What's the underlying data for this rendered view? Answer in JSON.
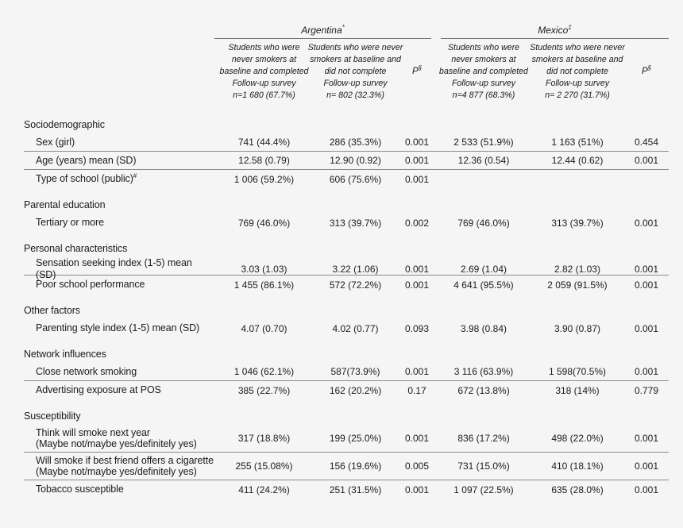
{
  "background": "#f5f5f6",
  "text_color": "#1b1b1b",
  "rule_color": "#8b8b8b",
  "table": {
    "col_groups": [
      {
        "label": "Argentina",
        "sup": "*"
      },
      {
        "label": "Mexico",
        "sup": "‡"
      }
    ],
    "col_headers": [
      {
        "lines": [
          "Students who were",
          "never smokers at",
          "baseline and completed",
          "Follow-up survey",
          "n=1 680 (67.7%)"
        ]
      },
      {
        "lines": [
          "Students who were never",
          "smokers at baseline and",
          "did not complete",
          "Follow-up survey",
          "n= 802 (32.3%)"
        ]
      },
      {
        "label": "P",
        "sup": "§"
      },
      {
        "lines": [
          "Students who were",
          "never smokers at",
          "baseline and completed",
          "Follow-up survey",
          "n=4 877 (68.3%)"
        ]
      },
      {
        "lines": [
          "Students who were never",
          "smokers at baseline and",
          "did not complete",
          "Follow-up survey",
          "n= 2 270 (31.7%)"
        ]
      },
      {
        "label": "P",
        "sup": "§"
      }
    ],
    "sections": [
      {
        "title": "Sociodemographic",
        "rows": [
          {
            "label": "Sex (girl)",
            "cells": [
              "741 (44.4%)",
              "286 (35.3%)",
              "0.001",
              "2 533 (51.9%)",
              "1 163 (51%)",
              "0.454"
            ],
            "rule_below": true
          },
          {
            "label": "Age (years) mean (SD)",
            "cells": [
              "12.58 (0.79)",
              "12.90 (0.92)",
              "0.001",
              "12.36 (0.54)",
              "12.44 (0.62)",
              "0.001"
            ],
            "rule_below": true
          },
          {
            "label": "Type of school (public)",
            "label_sup": "#",
            "cells": [
              "1 006 (59.2%)",
              "606 (75.6%)",
              "0.001",
              "",
              "",
              ""
            ],
            "rule_below": false
          }
        ]
      },
      {
        "title": "Parental education",
        "rows": [
          {
            "label": "Tertiary or more",
            "cells": [
              "769 (46.0%)",
              "313 (39.7%)",
              "0.002",
              "769 (46.0%)",
              "313 (39.7%)",
              "0.001"
            ],
            "rule_below": false
          }
        ]
      },
      {
        "title": "Personal characteristics",
        "rows": [
          {
            "label": "Sensation seeking index (1-5) mean (SD)",
            "cells": [
              "3.03 (1.03)",
              "3.22 (1.06)",
              "0.001",
              "2.69 (1.04)",
              "2.82 (1.03)",
              "0.001"
            ],
            "rule_below": true
          },
          {
            "label": "Poor school performance",
            "cells": [
              "1 455 (86.1%)",
              "572 (72.2%)",
              "0.001",
              "4 641 (95.5%)",
              "2 059 (91.5%)",
              "0.001"
            ],
            "rule_below": false
          }
        ]
      },
      {
        "title": "Other factors",
        "rows": [
          {
            "label": "Parenting style index (1-5) mean (SD)",
            "cells": [
              "4.07 (0.70)",
              "4.02 (0.77)",
              "0.093",
              "3.98 (0.84)",
              "3.90 (0.87)",
              "0.001"
            ],
            "rule_below": false
          }
        ]
      },
      {
        "title": "Network influences",
        "rows": [
          {
            "label": "Close network smoking",
            "cells": [
              "1 046 (62.1%)",
              "587(73.9%)",
              "0.001",
              "3 116 (63.9%)",
              "1 598(70.5%)",
              "0.001"
            ],
            "rule_below": true
          },
          {
            "label": "Advertising exposure at POS",
            "cells": [
              "385 (22.7%)",
              "162 (20.2%)",
              "0.17",
              "672 (13.8%)",
              "318 (14%)",
              "0.779"
            ],
            "rule_below": false
          }
        ]
      },
      {
        "title": "Susceptibility",
        "rows": [
          {
            "label": "Think will smoke next year",
            "label2": "(Maybe not/maybe yes/definitely yes)",
            "cells": [
              "317 (18.8%)",
              "199 (25.0%)",
              "0.001",
              "836 (17.2%)",
              "498 (22.0%)",
              "0.001"
            ],
            "rule_below": true
          },
          {
            "label": "Will smoke if best friend offers a cigarette",
            "label2": "(Maybe not/maybe yes/definitely yes)",
            "cells": [
              "255 (15.08%)",
              "156 (19.6%)",
              "0.005",
              "731 (15.0%)",
              "410 (18.1%)",
              "0.001"
            ],
            "rule_below": true
          },
          {
            "label": "Tobacco susceptible",
            "cells": [
              "411 (24.2%)",
              "251 (31.5%)",
              "0.001",
              "1 097 (22.5%)",
              "635 (28.0%)",
              "0.001"
            ],
            "rule_below": false
          }
        ]
      }
    ]
  }
}
